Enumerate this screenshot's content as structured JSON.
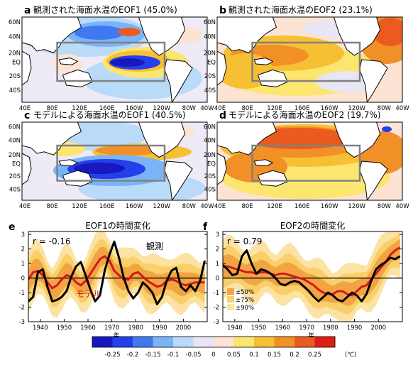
{
  "maps": [
    {
      "letter": "a",
      "title": "観測された海面水温のEOF1 (45.0%)",
      "pattern": "obs1"
    },
    {
      "letter": "b",
      "title": "観測された海面水温のEOF2 (23.1%)",
      "pattern": "obs2"
    },
    {
      "letter": "c",
      "title": "モデルによる海面水温のEOF1 (40.5%)",
      "pattern": "mod1"
    },
    {
      "letter": "d",
      "title": "モデルによる海面水温のEOF2 (19.7%)",
      "pattern": "mod2"
    }
  ],
  "map_lat_ticks": [
    "60N",
    "40N",
    "20N",
    "EQ",
    "20S",
    "40S"
  ],
  "map_lon_ticks": [
    "40E",
    "80E",
    "120E",
    "160E",
    "160W",
    "120W",
    "80W",
    "40W"
  ],
  "timeseries": [
    {
      "letter": "e",
      "title": "EOF1の時間変化",
      "r_label": "r = -0.16",
      "obs_label": "観測",
      "model_label": "モデル",
      "spread_legend": []
    },
    {
      "letter": "f",
      "title": "EOF2の時間変化",
      "r_label": "r = 0.79",
      "obs_label": "",
      "model_label": "",
      "spread_legend": [
        "±50%",
        "±75%",
        "±90%"
      ]
    }
  ],
  "ts_y_ticks": [
    "3",
    "2",
    "1",
    "0",
    "-1",
    "-2",
    "-3"
  ],
  "ts_x_ticks": [
    "1940",
    "1950",
    "1960",
    "1970",
    "1980",
    "1990",
    "2000"
  ],
  "ts_xlabel": "年",
  "chart_data": [
    {
      "type": "line",
      "panel": "e",
      "title": "EOF1の時間変化",
      "xlabel": "年",
      "ylabel": "",
      "xlim": [
        1935,
        2010
      ],
      "ylim": [
        -3,
        3.2
      ],
      "annotations": [
        "r = -0.16"
      ],
      "series": [
        {
          "name": "観測",
          "color": "#000000",
          "x": [
            1935,
            1937,
            1939,
            1941,
            1943,
            1945,
            1947,
            1949,
            1951,
            1953,
            1955,
            1957,
            1959,
            1961,
            1963,
            1965,
            1967,
            1969,
            1971,
            1973,
            1975,
            1977,
            1979,
            1981,
            1983,
            1985,
            1987,
            1989,
            1991,
            1993,
            1995,
            1997,
            1999,
            2001,
            2003,
            2005,
            2007,
            2009
          ],
          "y": [
            -1.6,
            -1.3,
            0.4,
            0.6,
            -0.6,
            -1.6,
            -1.5,
            -1.3,
            -0.9,
            0.1,
            0.8,
            1.1,
            0.2,
            -0.8,
            -1.6,
            -1.2,
            0.5,
            1.6,
            2.5,
            1.4,
            0.0,
            -0.9,
            -1.4,
            -1.0,
            -0.3,
            -0.6,
            -1.0,
            -1.8,
            -1.3,
            -0.2,
            0.5,
            0.7,
            -0.6,
            -0.9,
            -0.5,
            -0.9,
            -0.2,
            1.2
          ]
        },
        {
          "name": "モデル",
          "color": "#d21a1a",
          "x": [
            1935,
            1937,
            1939,
            1941,
            1943,
            1945,
            1947,
            1949,
            1951,
            1953,
            1955,
            1957,
            1959,
            1961,
            1963,
            1965,
            1967,
            1969,
            1971,
            1973,
            1975,
            1977,
            1979,
            1981,
            1983,
            1985,
            1987,
            1989,
            1991,
            1993,
            1995,
            1997,
            1999,
            2001,
            2003,
            2005,
            2007,
            2009
          ],
          "y": [
            -0.1,
            0.4,
            0.5,
            0.2,
            -0.3,
            -0.7,
            -0.5,
            -0.1,
            0.2,
            0.1,
            -0.3,
            -0.5,
            -0.2,
            0.3,
            0.8,
            1.3,
            1.5,
            1.2,
            0.5,
            0.2,
            -0.1,
            -0.1,
            0.3,
            0.4,
            0.1,
            -0.2,
            -0.4,
            -0.6,
            -0.5,
            -0.2,
            -0.1,
            -0.2,
            -0.4,
            -0.5,
            -0.4,
            -0.3,
            -0.3,
            -0.3
          ]
        }
      ]
    },
    {
      "type": "line",
      "panel": "f",
      "title": "EOF2の時間変化",
      "xlabel": "年",
      "ylabel": "",
      "xlim": [
        1935,
        2010
      ],
      "ylim": [
        -3,
        3.2
      ],
      "annotations": [
        "r = 0.79"
      ],
      "legend": [
        "±50%",
        "±75%",
        "±90%"
      ],
      "series": [
        {
          "name": "",
          "color": "#000000",
          "x": [
            1935,
            1937,
            1939,
            1941,
            1943,
            1945,
            1947,
            1949,
            1951,
            1953,
            1955,
            1957,
            1959,
            1961,
            1963,
            1965,
            1967,
            1969,
            1971,
            1973,
            1975,
            1977,
            1979,
            1981,
            1983,
            1985,
            1987,
            1989,
            1991,
            1993,
            1995,
            1997,
            1999,
            2001,
            2003,
            2005,
            2007,
            2009
          ],
          "y": [
            0.9,
            0.6,
            0.2,
            0.3,
            1.5,
            1.9,
            1.0,
            0.3,
            0.6,
            0.5,
            0.3,
            0.0,
            -0.4,
            -0.5,
            -0.3,
            -0.2,
            -0.3,
            -0.6,
            -0.9,
            -1.3,
            -1.6,
            -1.3,
            -1.0,
            -1.2,
            -1.5,
            -1.6,
            -1.3,
            -1.0,
            -1.2,
            -1.6,
            -1.1,
            -0.2,
            0.6,
            0.9,
            1.1,
            1.4,
            1.3,
            1.5
          ]
        },
        {
          "name": "",
          "color": "#d21a1a",
          "x": [
            1935,
            1937,
            1939,
            1941,
            1943,
            1945,
            1947,
            1949,
            1951,
            1953,
            1955,
            1957,
            1959,
            1961,
            1963,
            1965,
            1967,
            1969,
            1971,
            1973,
            1975,
            1977,
            1979,
            1981,
            1983,
            1985,
            1987,
            1989,
            1991,
            1993,
            1995,
            1997,
            1999,
            2001,
            2003,
            2005,
            2007,
            2009
          ],
          "y": [
            0.8,
            0.8,
            0.7,
            0.6,
            0.5,
            0.4,
            0.4,
            0.3,
            0.4,
            0.4,
            0.3,
            0.2,
            0.3,
            0.3,
            0.2,
            0.1,
            0.0,
            -0.1,
            -0.3,
            -0.5,
            -0.8,
            -1.0,
            -1.1,
            -1.1,
            -0.9,
            -0.9,
            -1.1,
            -1.2,
            -0.9,
            -0.6,
            -0.5,
            -0.1,
            0.3,
            0.7,
            1.1,
            1.6,
            1.9,
            2.1
          ]
        }
      ]
    }
  ],
  "colorbar": {
    "unit": "(℃)",
    "labels": [
      "-0.25",
      "-0.2",
      "-0.15",
      "-0.1",
      "-0.05",
      "0",
      "0.05",
      "0.1",
      "0.15",
      "0.2",
      "0.25"
    ],
    "colors": [
      "#1818c0",
      "#2440e8",
      "#3f79f2",
      "#7ab4f7",
      "#b9dbf9",
      "#e8e6f4",
      "#fce3d4",
      "#fce670",
      "#f7c034",
      "#f29028",
      "#eb5a1e",
      "#dc1f14"
    ]
  }
}
